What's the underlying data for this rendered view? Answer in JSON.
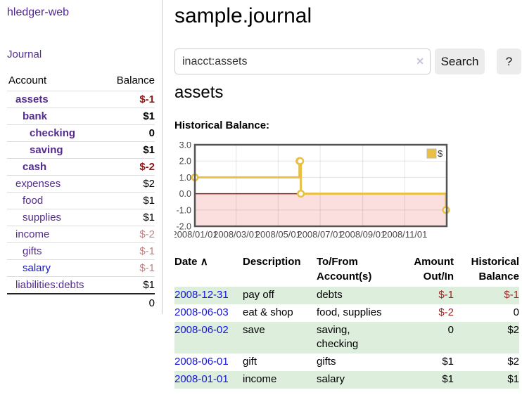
{
  "app": {
    "title": "hledger-web"
  },
  "sidebar": {
    "journal_label": "Journal",
    "accounts": {
      "account_header": "Account",
      "balance_header": "Balance",
      "rows": [
        {
          "label": "assets",
          "balance": "$-1",
          "level": 1,
          "bold": true,
          "neg": true,
          "blue": false
        },
        {
          "label": "bank",
          "balance": "$1",
          "level": 2,
          "bold": true,
          "neg": false,
          "blue": false
        },
        {
          "label": "checking",
          "balance": "0",
          "level": 3,
          "bold": true,
          "neg": false,
          "blue": false
        },
        {
          "label": "saving",
          "balance": "$1",
          "level": 3,
          "bold": true,
          "neg": false,
          "blue": false
        },
        {
          "label": "cash",
          "balance": "$-2",
          "level": 2,
          "bold": true,
          "neg": true,
          "blue": false
        },
        {
          "label": "expenses",
          "balance": "$2",
          "level": 1,
          "bold": false,
          "neg": false,
          "blue": false
        },
        {
          "label": "food",
          "balance": "$1",
          "level": 2,
          "bold": false,
          "neg": false,
          "blue": false
        },
        {
          "label": "supplies",
          "balance": "$1",
          "level": 2,
          "bold": false,
          "neg": false,
          "blue": false
        },
        {
          "label": "income",
          "balance": "$-2",
          "level": 1,
          "bold": false,
          "neg": true,
          "blue": false
        },
        {
          "label": "gifts",
          "balance": "$-1",
          "level": 2,
          "bold": false,
          "neg": true,
          "blue": false
        },
        {
          "label": "salary",
          "balance": "$-1",
          "level": 2,
          "bold": false,
          "neg": true,
          "blue": true
        },
        {
          "label": "liabilities:debts",
          "balance": "$1",
          "level": 1,
          "bold": false,
          "neg": false,
          "blue": false
        }
      ],
      "total": "0"
    }
  },
  "main": {
    "title": "sample.journal",
    "search": {
      "value": "inacct:assets",
      "clear_icon": "✕",
      "button_label": "Search",
      "help_label": "?"
    },
    "account_heading": "assets"
  },
  "chart_data": {
    "type": "line",
    "title": "Historical Balance:",
    "step": true,
    "series": [
      {
        "name": "$",
        "color": "#e9c044",
        "points": [
          {
            "x": "2008/01/01",
            "y": 1
          },
          {
            "x": "2008/06/01",
            "y": 2
          },
          {
            "x": "2008/06/02",
            "y": 2
          },
          {
            "x": "2008/06/03",
            "y": 0
          },
          {
            "x": "2008/12/31",
            "y": -1
          }
        ]
      }
    ],
    "xlim": [
      "2008/01/01",
      "2009/01/01"
    ],
    "ylim": [
      -2,
      3
    ],
    "x_ticks": [
      "2008/01/01",
      "2008/03/01",
      "2008/05/01",
      "2008/07/01",
      "2008/09/01",
      "2008/11/01"
    ],
    "y_ticks": [
      "3.0",
      "2.0",
      "1.0",
      "0.0",
      "-1.0",
      "-2.0"
    ],
    "legend": {
      "label": "$",
      "position": "top-right"
    },
    "grid": true,
    "colors": {
      "negative_region": "#fbdede",
      "zero_line": "#9e1a1a",
      "border": "#545454",
      "tick_text": "#4a4a4a",
      "gridline": "rgba(0,0,0,0.10)"
    }
  },
  "register": {
    "headers": {
      "date": "Date",
      "sort_icon": "∧",
      "description": "Description",
      "accounts_line1": "To/From",
      "accounts_line2": "Account(s)",
      "amount_line1": "Amount",
      "amount_line2": "Out/In",
      "balance_line1": "Historical",
      "balance_line2": "Balance"
    },
    "rows": [
      {
        "date": "2008-12-31",
        "description": "pay off",
        "accounts": "debts",
        "amount": "$-1",
        "balance": "$-1",
        "amount_neg": true,
        "balance_neg": true
      },
      {
        "date": "2008-06-03",
        "description": "eat & shop",
        "accounts": "food, supplies",
        "amount": "$-2",
        "balance": "0",
        "amount_neg": true,
        "balance_neg": false
      },
      {
        "date": "2008-06-02",
        "description": "save",
        "accounts": "saving, checking",
        "amount": "0",
        "balance": "$2",
        "amount_neg": false,
        "balance_neg": false
      },
      {
        "date": "2008-06-01",
        "description": "gift",
        "accounts": "gifts",
        "amount": "$1",
        "balance": "$2",
        "amount_neg": false,
        "balance_neg": false
      },
      {
        "date": "2008-01-01",
        "description": "income",
        "accounts": "salary",
        "amount": "$1",
        "balance": "$1",
        "amount_neg": false,
        "balance_neg": false
      }
    ]
  }
}
